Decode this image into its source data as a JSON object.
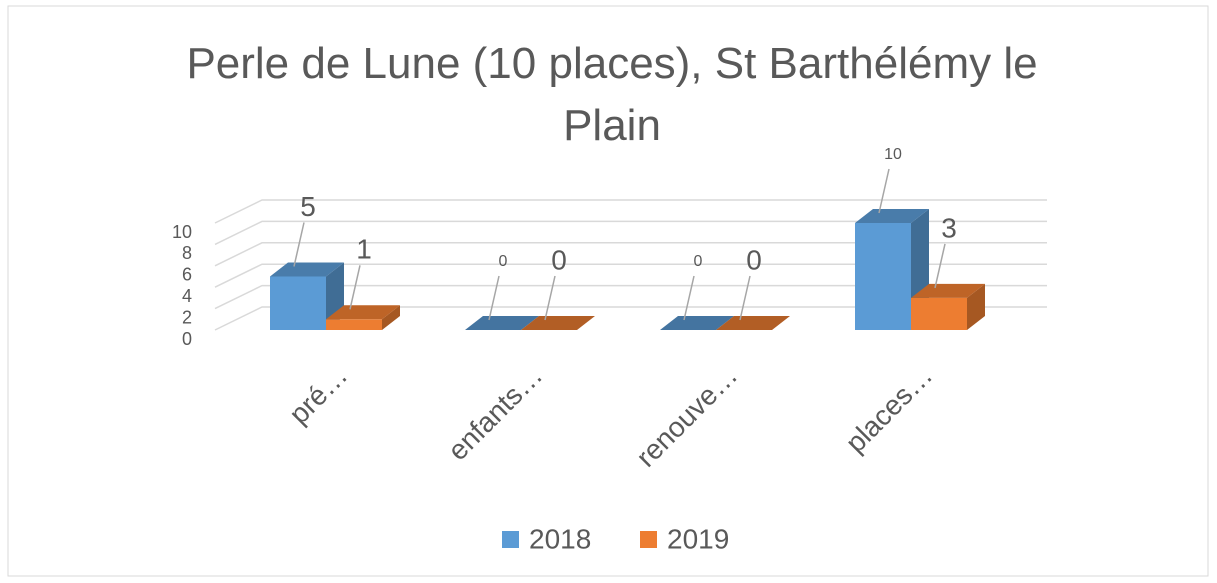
{
  "chart_data": {
    "type": "bar3d",
    "title": "Perle de Lune (10 places), St Barthélémy le Plain",
    "categories": [
      "pré…",
      "enfants…",
      "renouve…",
      "places…"
    ],
    "series": [
      {
        "name": "2018",
        "color": "#5b9bd5",
        "values": [
          5,
          0,
          0,
          10
        ]
      },
      {
        "name": "2019",
        "color": "#ed7d31",
        "values": [
          1,
          0,
          0,
          3
        ]
      }
    ],
    "ylim": [
      0,
      10
    ],
    "yticks": [
      0,
      2,
      4,
      6,
      8,
      10
    ],
    "grid": true,
    "legend": "bottom"
  }
}
